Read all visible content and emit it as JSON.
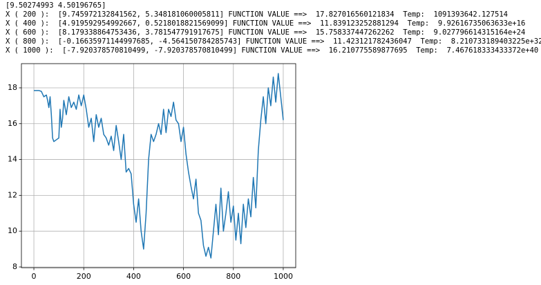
{
  "output_lines": [
    "[9.50274993 4.50196765]",
    "X ( 200 ):  [9.745972132841562, 5.348181060005811] FUNCTION VALUE ==>  17.827016560121834  Temp:  1091393642.127514",
    "X ( 400 ):  [4.919592954992667, 0.5218018821569099] FUNCTION VALUE ==>  11.839123252881294  Temp:  9.92616735063633e+16",
    "X ( 600 ):  [8.179338864753436, 3.781547791917675] FUNCTION VALUE ==>  15.758337447262262  Temp:  9.027796614315164e+24",
    "X ( 800 ):  [-0.16635971144997685, -4.564150784285743] FUNCTION VALUE ==>  11.423121782436047  Temp:  8.210733189403225e+32",
    "X ( 1000 ):  [-7.920378570810499, -7.920378570810499] FUNCTION VALUE ==>  16.210775589877695  Temp:  7.467618333433372e+40"
  ],
  "chart_data": {
    "type": "line",
    "grid": true,
    "xlim": [
      -50,
      1050
    ],
    "xticks": [
      0,
      200,
      400,
      600,
      800,
      1000
    ],
    "ylim": [
      7.96,
      19.35
    ],
    "yticks": [
      8,
      10,
      12,
      14,
      16,
      18
    ],
    "x": [
      0,
      10,
      20,
      30,
      40,
      50,
      55,
      60,
      65,
      70,
      75,
      80,
      90,
      100,
      105,
      110,
      115,
      120,
      130,
      140,
      150,
      160,
      170,
      180,
      190,
      200,
      210,
      220,
      230,
      240,
      250,
      260,
      270,
      280,
      290,
      300,
      310,
      320,
      330,
      340,
      350,
      360,
      370,
      380,
      390,
      400,
      410,
      420,
      430,
      440,
      450,
      460,
      470,
      480,
      490,
      500,
      510,
      520,
      530,
      540,
      550,
      560,
      570,
      580,
      590,
      600,
      610,
      620,
      630,
      640,
      650,
      660,
      670,
      680,
      690,
      700,
      710,
      720,
      730,
      740,
      750,
      760,
      770,
      780,
      790,
      800,
      810,
      820,
      830,
      840,
      850,
      860,
      870,
      880,
      890,
      900,
      910,
      920,
      930,
      940,
      950,
      960,
      970,
      980,
      990,
      1000
    ],
    "series": [
      {
        "color": "#1f77b4",
        "values": [
          17.85,
          17.85,
          17.85,
          17.8,
          17.5,
          17.6,
          17.3,
          16.9,
          17.5,
          16.5,
          15.2,
          15.0,
          15.1,
          15.2,
          16.8,
          15.8,
          16.3,
          17.3,
          16.5,
          17.5,
          16.9,
          17.2,
          16.8,
          17.6,
          17.0,
          17.6,
          16.8,
          15.8,
          16.3,
          15.0,
          16.5,
          15.8,
          16.3,
          15.4,
          15.2,
          14.8,
          15.3,
          14.5,
          15.9,
          15.0,
          14.0,
          15.4,
          13.3,
          13.5,
          13.2,
          11.5,
          10.5,
          11.8,
          10.0,
          9.0,
          11.0,
          14.0,
          15.4,
          15.0,
          15.4,
          16.0,
          15.4,
          16.8,
          15.5,
          16.8,
          16.4,
          17.2,
          16.2,
          16.0,
          15.0,
          15.8,
          14.3,
          13.3,
          12.5,
          11.8,
          12.9,
          11.0,
          10.6,
          9.2,
          8.6,
          9.1,
          8.5,
          10.0,
          11.5,
          9.8,
          12.4,
          10.0,
          11.0,
          12.2,
          10.5,
          11.4,
          9.5,
          11.0,
          9.3,
          11.5,
          10.2,
          11.8,
          10.8,
          13.0,
          11.3,
          14.5,
          16.2,
          17.5,
          16.0,
          18.0,
          17.0,
          18.6,
          17.2,
          18.8,
          17.5,
          16.2
        ]
      }
    ]
  }
}
